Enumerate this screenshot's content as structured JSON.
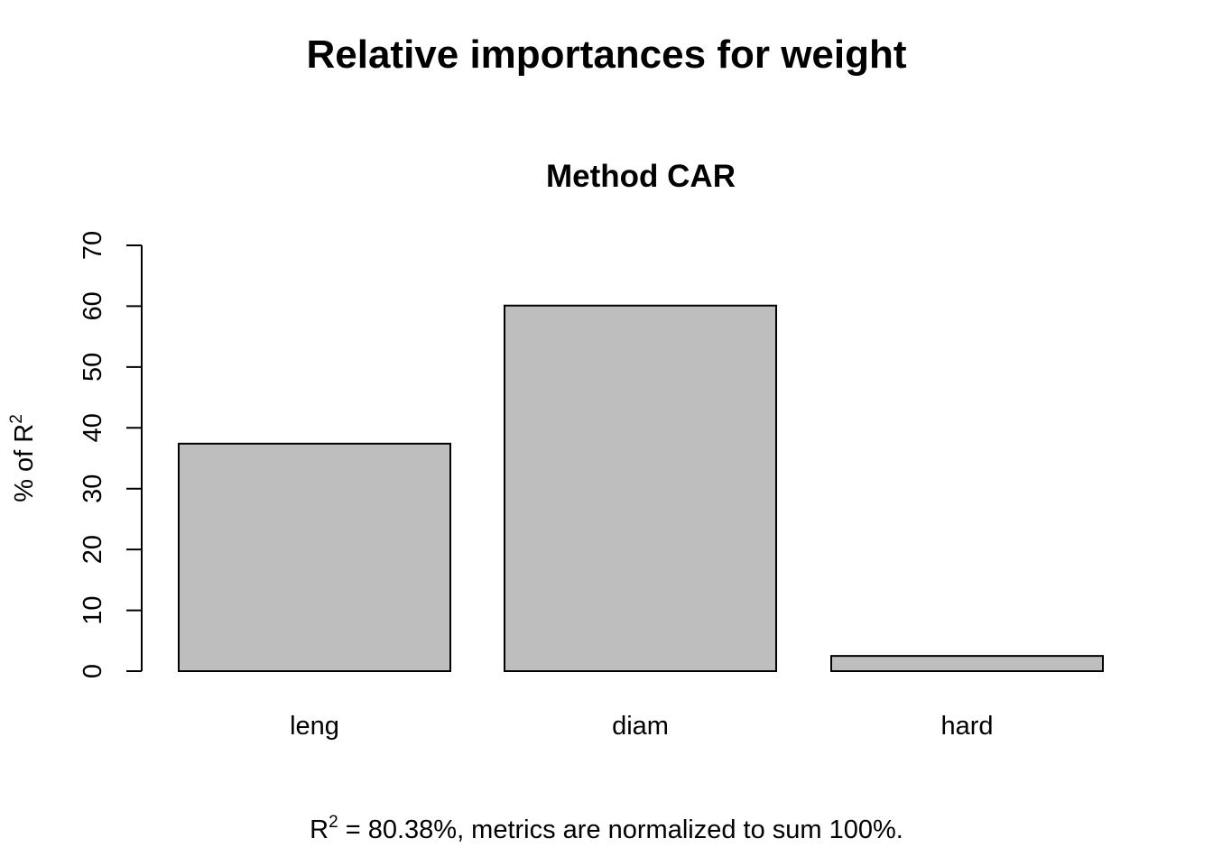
{
  "chart_data": {
    "type": "bar",
    "title": "Relative importances for weight",
    "subtitle": "Method CAR",
    "categories": [
      "leng",
      "diam",
      "hard"
    ],
    "values": [
      37.4,
      60.1,
      2.5
    ],
    "ylabel": "% of R",
    "ylabel_sup": "2",
    "yticks": [
      0,
      10,
      20,
      30,
      40,
      50,
      60,
      70
    ],
    "ylim": [
      0,
      70
    ],
    "grid": false,
    "legend": "none",
    "bar_color": "#bebebe",
    "bar_edge_color": "#000000"
  },
  "footnote": {
    "r_symbol": "R",
    "r_sup": "2",
    "text": " = 80.38%, metrics are normalized to sum 100%."
  }
}
